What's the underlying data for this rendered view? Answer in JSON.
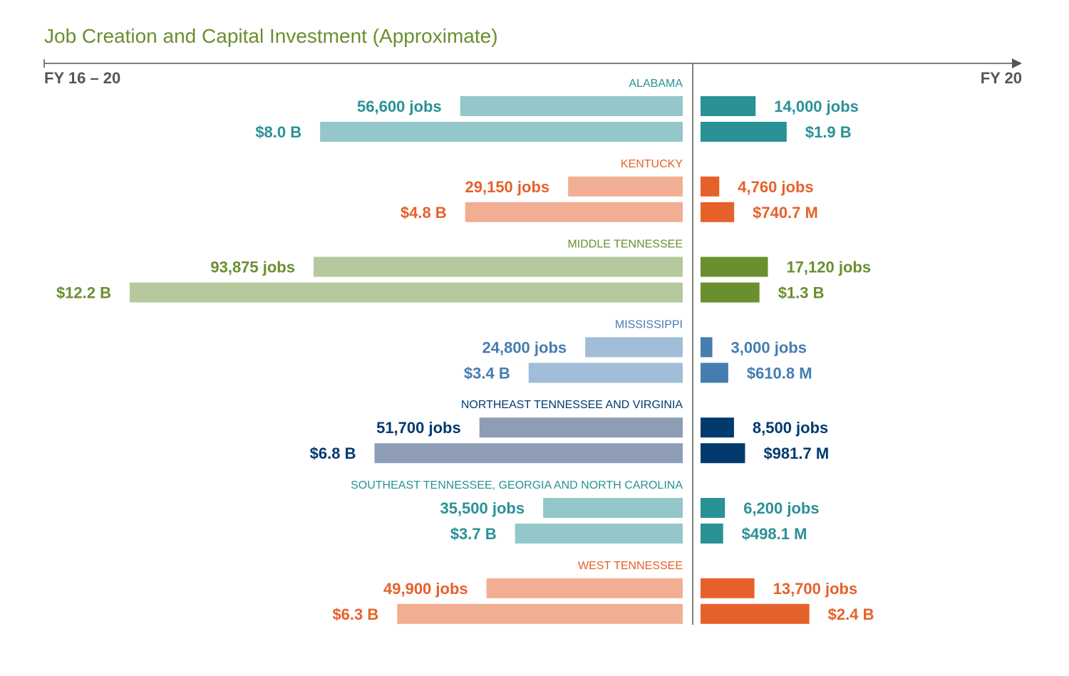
{
  "chart_data": {
    "type": "bar",
    "title": "Job Creation and Capital Investment (Approximate)",
    "left_axis_label": "FY 16 – 20",
    "right_axis_label": "FY 20",
    "title_color": "#6a8f2f",
    "axis_color": "#555555",
    "regions": [
      {
        "name": "ALABAMA",
        "color": "#2a9196",
        "light_color": "#94c7ca",
        "left": {
          "jobs": 56600,
          "jobs_label": "56,600 jobs",
          "investment_b": 8.0,
          "investment_label": "$8.0 B"
        },
        "right": {
          "jobs": 14000,
          "jobs_label": "14,000 jobs",
          "investment_b": 1.9,
          "investment_label": "$1.9 B"
        }
      },
      {
        "name": "KENTUCKY",
        "color": "#e6612a",
        "light_color": "#f2ae92",
        "left": {
          "jobs": 29150,
          "jobs_label": "29,150 jobs",
          "investment_b": 4.8,
          "investment_label": "$4.8 B"
        },
        "right": {
          "jobs": 4760,
          "jobs_label": "4,760 jobs",
          "investment_b": 0.7407,
          "investment_label": "$740.7 M"
        }
      },
      {
        "name": "MIDDLE TENNESSEE",
        "color": "#6a8f2f",
        "light_color": "#b5c99c",
        "left": {
          "jobs": 93875,
          "jobs_label": "93,875 jobs",
          "investment_b": 12.2,
          "investment_label": "$12.2 B"
        },
        "right": {
          "jobs": 17120,
          "jobs_label": "17,120 jobs",
          "investment_b": 1.3,
          "investment_label": "$1.3 B"
        }
      },
      {
        "name": "MISSISSIPPI",
        "color": "#457db0",
        "light_color": "#a2bdd8",
        "left": {
          "jobs": 24800,
          "jobs_label": "24,800 jobs",
          "investment_b": 3.4,
          "investment_label": "$3.4 B"
        },
        "right": {
          "jobs": 3000,
          "jobs_label": "3,000 jobs",
          "investment_b": 0.6108,
          "investment_label": "$610.8 M"
        }
      },
      {
        "name": "NORTHEAST TENNESSEE AND VIRGINIA",
        "color": "#023a6e",
        "light_color": "#8d9db6",
        "left": {
          "jobs": 51700,
          "jobs_label": "51,700 jobs",
          "investment_b": 6.8,
          "investment_label": "$6.8 B"
        },
        "right": {
          "jobs": 8500,
          "jobs_label": "8,500 jobs",
          "investment_b": 0.9817,
          "investment_label": "$981.7 M"
        }
      },
      {
        "name": "SOUTHEAST TENNESSEE, GEORGIA AND NORTH CAROLINA",
        "color": "#2a9196",
        "light_color": "#94c7ca",
        "left": {
          "jobs": 35500,
          "jobs_label": "35,500 jobs",
          "investment_b": 3.7,
          "investment_label": "$3.7 B"
        },
        "right": {
          "jobs": 6200,
          "jobs_label": "6,200 jobs",
          "investment_b": 0.4981,
          "investment_label": "$498.1 M"
        }
      },
      {
        "name": "WEST TENNESSEE",
        "color": "#e6612a",
        "light_color": "#f2ae92",
        "left": {
          "jobs": 49900,
          "jobs_label": "49,900 jobs",
          "investment_b": 6.3,
          "investment_label": "$6.3 B"
        },
        "right": {
          "jobs": 13700,
          "jobs_label": "13,700 jobs",
          "investment_b": 2.4,
          "investment_label": "$2.4 B"
        }
      }
    ]
  }
}
